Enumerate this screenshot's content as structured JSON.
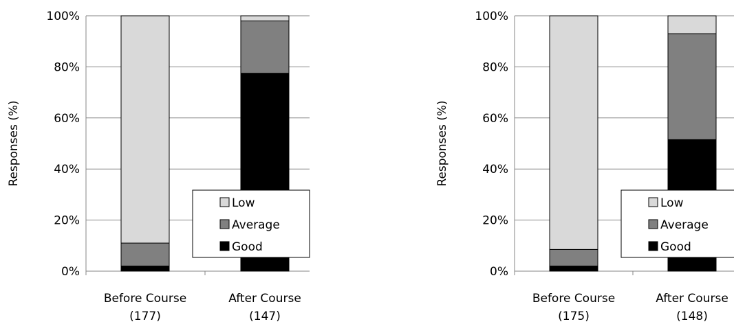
{
  "chart_data": [
    {
      "type": "bar",
      "stacked": true,
      "ylabel": "Responses (%)",
      "ylim": [
        0,
        100
      ],
      "yticks": [
        "0%",
        "20%",
        "40%",
        "60%",
        "80%",
        "100%"
      ],
      "grid": true,
      "legend_position": "bottom-right",
      "categories": [
        "Before Course",
        "After Course"
      ],
      "category_counts": [
        "(177)",
        "(147)"
      ],
      "series": [
        {
          "name": "Good",
          "color": "#000000",
          "values": [
            2,
            77.5
          ]
        },
        {
          "name": "Average",
          "color": "#808080",
          "values": [
            9,
            20.5
          ]
        },
        {
          "name": "Low",
          "color": "#d9d9d9",
          "values": [
            89,
            2
          ]
        }
      ]
    },
    {
      "type": "bar",
      "stacked": true,
      "ylabel": "Responses (%)",
      "ylim": [
        0,
        100
      ],
      "yticks": [
        "0%",
        "20%",
        "40%",
        "60%",
        "80%",
        "100%"
      ],
      "grid": true,
      "legend_position": "bottom-right",
      "categories": [
        "Before Course",
        "After Course"
      ],
      "category_counts": [
        "(175)",
        "(148)"
      ],
      "series": [
        {
          "name": "Good",
          "color": "#000000",
          "values": [
            2,
            51.5
          ]
        },
        {
          "name": "Average",
          "color": "#808080",
          "values": [
            6.5,
            41.5
          ]
        },
        {
          "name": "Low",
          "color": "#d9d9d9",
          "values": [
            91.5,
            7
          ]
        }
      ]
    }
  ]
}
